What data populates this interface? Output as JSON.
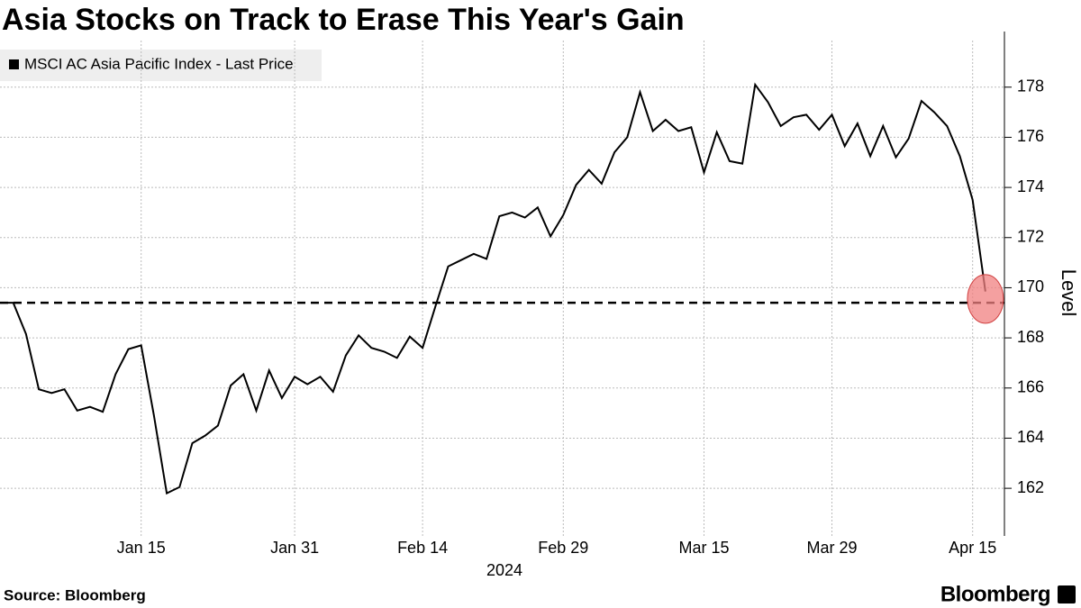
{
  "chart_data": {
    "type": "line",
    "title": "Asia Stocks on Track to Erase This Year's Gain",
    "x_label": "2024",
    "y_label": "Level",
    "source": "Source: Bloomberg",
    "logo": "Bloomberg",
    "categories": [
      null,
      null,
      null,
      null,
      null,
      null,
      null,
      null,
      null,
      null,
      null,
      "Jan 15",
      null,
      null,
      null,
      null,
      null,
      null,
      null,
      null,
      null,
      null,
      null,
      "Jan 31",
      null,
      null,
      null,
      null,
      null,
      null,
      null,
      null,
      null,
      "Feb 14",
      null,
      null,
      null,
      null,
      null,
      null,
      null,
      null,
      null,
      null,
      "Feb 29",
      null,
      null,
      null,
      null,
      null,
      null,
      null,
      null,
      null,
      null,
      "Mar 15",
      null,
      null,
      null,
      null,
      null,
      null,
      null,
      null,
      null,
      "Mar 29",
      null,
      null,
      null,
      null,
      null,
      null,
      null,
      null,
      null,
      null,
      "Apr 15",
      null
    ],
    "series": [
      {
        "name": "MSCI AC Asia Pacific Index - Last Price",
        "color": "#000000",
        "values": [
          169.4,
          169.4,
          168.15,
          165.95,
          165.8,
          165.95,
          165.1,
          165.25,
          165.05,
          166.55,
          167.55,
          167.7,
          164.9,
          161.8,
          162.05,
          163.8,
          164.1,
          164.5,
          166.1,
          166.55,
          165.1,
          166.7,
          165.6,
          166.45,
          166.15,
          166.45,
          165.85,
          167.3,
          168.1,
          167.6,
          167.45,
          167.2,
          168.05,
          167.6,
          169.25,
          170.85,
          171.1,
          171.35,
          171.15,
          172.85,
          173.0,
          172.8,
          173.2,
          172.05,
          172.9,
          174.1,
          174.7,
          174.15,
          175.4,
          176.0,
          177.8,
          176.25,
          176.7,
          176.25,
          176.4,
          174.6,
          176.2,
          175.05,
          174.95,
          178.1,
          177.4,
          176.45,
          176.8,
          176.9,
          176.3,
          176.9,
          175.65,
          176.55,
          175.25,
          176.45,
          175.2,
          175.95,
          177.45,
          177.0,
          176.45,
          175.25,
          173.5,
          169.85
        ]
      }
    ],
    "reference_line": 169.4,
    "reference_color": "#000000",
    "highlight_color": "#f08080",
    "ylim": [
      160.1,
      179.5
    ],
    "yticks": [
      162,
      164,
      166,
      168,
      170,
      172,
      174,
      176,
      178
    ],
    "grid": true,
    "legend": "top-left"
  }
}
